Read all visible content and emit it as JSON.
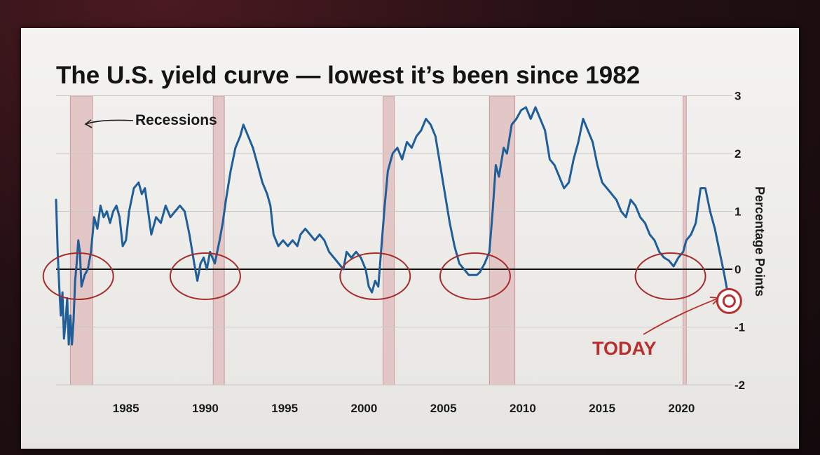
{
  "chart_data": {
    "type": "line",
    "title": "The U.S. yield curve — lowest it’s been since 1982",
    "xlabel": "",
    "ylabel": "Percentage Points",
    "xlim": [
      1980.6,
      2022.9
    ],
    "ylim": [
      -2,
      3
    ],
    "x_ticks": [
      1985,
      1990,
      1995,
      2000,
      2005,
      2010,
      2015,
      2020
    ],
    "y_ticks": [
      -2,
      -1,
      0,
      1,
      2,
      3
    ],
    "grid": "horizontal",
    "annotations": {
      "recessions": "Recessions",
      "today": "TODAY"
    },
    "recessions": [
      [
        1981.5,
        1982.9
      ],
      [
        1990.5,
        1991.2
      ],
      [
        2001.2,
        2001.9
      ],
      [
        2007.9,
        2009.5
      ],
      [
        2020.1,
        2020.3
      ]
    ],
    "circled_periods": [
      1982.0,
      1990.0,
      2000.7,
      2007.0,
      2019.3
    ],
    "today_point": [
      2023.0,
      -0.55
    ],
    "series": [
      {
        "points": [
          [
            1980.6,
            1.2
          ],
          [
            1980.7,
            0.3
          ],
          [
            1980.8,
            -0.3
          ],
          [
            1980.9,
            -0.8
          ],
          [
            1981.0,
            -0.4
          ],
          [
            1981.1,
            -1.2
          ],
          [
            1981.2,
            -0.9
          ],
          [
            1981.3,
            -0.5
          ],
          [
            1981.4,
            -1.3
          ],
          [
            1981.5,
            -0.8
          ],
          [
            1981.6,
            -1.3
          ],
          [
            1981.7,
            -0.9
          ],
          [
            1981.8,
            -0.2
          ],
          [
            1981.9,
            0.1
          ],
          [
            1982.0,
            0.5
          ],
          [
            1982.1,
            0.3
          ],
          [
            1982.2,
            -0.3
          ],
          [
            1982.4,
            -0.1
          ],
          [
            1982.6,
            0.0
          ],
          [
            1982.8,
            0.3
          ],
          [
            1983.0,
            0.9
          ],
          [
            1983.2,
            0.7
          ],
          [
            1983.4,
            1.1
          ],
          [
            1983.6,
            0.9
          ],
          [
            1983.8,
            1.0
          ],
          [
            1984.0,
            0.8
          ],
          [
            1984.2,
            1.0
          ],
          [
            1984.4,
            1.1
          ],
          [
            1984.6,
            0.9
          ],
          [
            1984.8,
            0.4
          ],
          [
            1985.0,
            0.5
          ],
          [
            1985.2,
            1.0
          ],
          [
            1985.5,
            1.4
          ],
          [
            1985.8,
            1.5
          ],
          [
            1986.0,
            1.3
          ],
          [
            1986.2,
            1.4
          ],
          [
            1986.4,
            1.0
          ],
          [
            1986.6,
            0.6
          ],
          [
            1986.9,
            0.9
          ],
          [
            1987.2,
            0.8
          ],
          [
            1987.5,
            1.1
          ],
          [
            1987.8,
            0.9
          ],
          [
            1988.1,
            1.0
          ],
          [
            1988.4,
            1.1
          ],
          [
            1988.7,
            1.0
          ],
          [
            1989.0,
            0.6
          ],
          [
            1989.3,
            0.1
          ],
          [
            1989.5,
            -0.2
          ],
          [
            1989.7,
            0.1
          ],
          [
            1989.9,
            0.2
          ],
          [
            1990.1,
            0.0
          ],
          [
            1990.3,
            0.3
          ],
          [
            1990.6,
            0.1
          ],
          [
            1990.9,
            0.5
          ],
          [
            1991.1,
            0.8
          ],
          [
            1991.3,
            1.2
          ],
          [
            1991.6,
            1.7
          ],
          [
            1991.9,
            2.1
          ],
          [
            1992.2,
            2.3
          ],
          [
            1992.4,
            2.5
          ],
          [
            1992.7,
            2.3
          ],
          [
            1993.0,
            2.1
          ],
          [
            1993.3,
            1.8
          ],
          [
            1993.6,
            1.5
          ],
          [
            1993.9,
            1.3
          ],
          [
            1994.1,
            1.1
          ],
          [
            1994.3,
            0.6
          ],
          [
            1994.6,
            0.4
          ],
          [
            1994.9,
            0.5
          ],
          [
            1995.2,
            0.4
          ],
          [
            1995.5,
            0.5
          ],
          [
            1995.8,
            0.4
          ],
          [
            1996.0,
            0.6
          ],
          [
            1996.3,
            0.7
          ],
          [
            1996.6,
            0.6
          ],
          [
            1996.9,
            0.5
          ],
          [
            1997.2,
            0.6
          ],
          [
            1997.5,
            0.5
          ],
          [
            1997.8,
            0.3
          ],
          [
            1998.1,
            0.2
          ],
          [
            1998.4,
            0.1
          ],
          [
            1998.7,
            0.0
          ],
          [
            1998.9,
            0.3
          ],
          [
            1999.2,
            0.2
          ],
          [
            1999.5,
            0.3
          ],
          [
            1999.8,
            0.2
          ],
          [
            2000.1,
            0.0
          ],
          [
            2000.3,
            -0.3
          ],
          [
            2000.5,
            -0.4
          ],
          [
            2000.7,
            -0.2
          ],
          [
            2000.9,
            -0.3
          ],
          [
            2001.1,
            0.4
          ],
          [
            2001.3,
            1.1
          ],
          [
            2001.5,
            1.7
          ],
          [
            2001.8,
            2.0
          ],
          [
            2002.1,
            2.1
          ],
          [
            2002.4,
            1.9
          ],
          [
            2002.7,
            2.2
          ],
          [
            2003.0,
            2.1
          ],
          [
            2003.3,
            2.3
          ],
          [
            2003.6,
            2.4
          ],
          [
            2003.9,
            2.6
          ],
          [
            2004.2,
            2.5
          ],
          [
            2004.5,
            2.3
          ],
          [
            2004.8,
            1.8
          ],
          [
            2005.1,
            1.3
          ],
          [
            2005.4,
            0.8
          ],
          [
            2005.7,
            0.4
          ],
          [
            2006.0,
            0.1
          ],
          [
            2006.3,
            0.0
          ],
          [
            2006.6,
            -0.1
          ],
          [
            2006.9,
            -0.1
          ],
          [
            2007.1,
            -0.1
          ],
          [
            2007.3,
            -0.05
          ],
          [
            2007.6,
            0.1
          ],
          [
            2007.9,
            0.3
          ],
          [
            2008.1,
            1.0
          ],
          [
            2008.3,
            1.8
          ],
          [
            2008.5,
            1.6
          ],
          [
            2008.8,
            2.1
          ],
          [
            2009.0,
            2.0
          ],
          [
            2009.3,
            2.5
          ],
          [
            2009.6,
            2.6
          ],
          [
            2009.9,
            2.75
          ],
          [
            2010.2,
            2.8
          ],
          [
            2010.5,
            2.6
          ],
          [
            2010.8,
            2.8
          ],
          [
            2011.1,
            2.6
          ],
          [
            2011.4,
            2.4
          ],
          [
            2011.7,
            1.9
          ],
          [
            2012.0,
            1.8
          ],
          [
            2012.3,
            1.6
          ],
          [
            2012.6,
            1.4
          ],
          [
            2012.9,
            1.5
          ],
          [
            2013.2,
            1.9
          ],
          [
            2013.5,
            2.2
          ],
          [
            2013.8,
            2.6
          ],
          [
            2014.1,
            2.4
          ],
          [
            2014.4,
            2.2
          ],
          [
            2014.7,
            1.8
          ],
          [
            2015.0,
            1.5
          ],
          [
            2015.3,
            1.4
          ],
          [
            2015.6,
            1.3
          ],
          [
            2015.9,
            1.2
          ],
          [
            2016.2,
            1.0
          ],
          [
            2016.5,
            0.9
          ],
          [
            2016.8,
            1.2
          ],
          [
            2017.1,
            1.1
          ],
          [
            2017.4,
            0.9
          ],
          [
            2017.7,
            0.8
          ],
          [
            2018.0,
            0.6
          ],
          [
            2018.3,
            0.5
          ],
          [
            2018.6,
            0.3
          ],
          [
            2018.9,
            0.2
          ],
          [
            2019.2,
            0.15
          ],
          [
            2019.5,
            0.05
          ],
          [
            2019.8,
            0.2
          ],
          [
            2020.1,
            0.3
          ],
          [
            2020.3,
            0.5
          ],
          [
            2020.6,
            0.6
          ],
          [
            2020.9,
            0.8
          ],
          [
            2021.2,
            1.4
          ],
          [
            2021.5,
            1.4
          ],
          [
            2021.8,
            1.0
          ],
          [
            2022.1,
            0.7
          ],
          [
            2022.4,
            0.3
          ],
          [
            2022.7,
            -0.1
          ],
          [
            2022.9,
            -0.4
          ]
        ]
      }
    ]
  }
}
